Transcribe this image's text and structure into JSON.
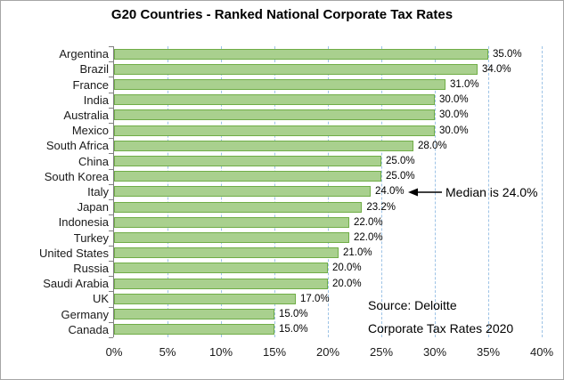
{
  "title": "G20 Countries - Ranked National Corporate Tax Rates",
  "colors": {
    "bar_fill": "#a9d08e",
    "bar_border": "#70ad47",
    "gridline": "#9dc3e6",
    "axis": "#808080",
    "chart_border": "#a6a6a6",
    "text": "#000000"
  },
  "chart_data": {
    "type": "bar",
    "orientation": "horizontal",
    "title": "G20 Countries - Ranked National Corporate Tax Rates",
    "categories": [
      "Argentina",
      "Brazil",
      "France",
      "India",
      "Australia",
      "Mexico",
      "South Africa",
      "China",
      "South Korea",
      "Italy",
      "Japan",
      "Indonesia",
      "Turkey",
      "United States",
      "Russia",
      "Saudi Arabia",
      "UK",
      "Germany",
      "Canada"
    ],
    "values": [
      35.0,
      34.0,
      31.0,
      30.0,
      30.0,
      30.0,
      28.0,
      25.0,
      25.0,
      24.0,
      23.2,
      22.0,
      22.0,
      21.0,
      20.0,
      20.0,
      17.0,
      15.0,
      15.0
    ],
    "data_labels": [
      "35.0%",
      "34.0%",
      "31.0%",
      "30.0%",
      "30.0%",
      "30.0%",
      "28.0%",
      "25.0%",
      "25.0%",
      "24.0%",
      "23.2%",
      "22.0%",
      "22.0%",
      "21.0%",
      "20.0%",
      "20.0%",
      "17.0%",
      "15.0%",
      "15.0%"
    ],
    "xlim": [
      0,
      40
    ],
    "x_tick_labels": [
      "0%",
      "5%",
      "10%",
      "15%",
      "20%",
      "25%",
      "30%",
      "35%",
      "40%"
    ],
    "x_tick_values": [
      0,
      5,
      10,
      15,
      20,
      25,
      30,
      35,
      40
    ],
    "grid": "vertical dashed gridlines at each 5% tick",
    "legend": "none",
    "annotation": {
      "text": "Median is 24.0%",
      "target_category": "Italy",
      "target_value": 24.0,
      "arrow": "left-pointing"
    },
    "source_note_lines": [
      "Source:  Deloitte",
      "Corporate Tax Rates 2020"
    ]
  }
}
